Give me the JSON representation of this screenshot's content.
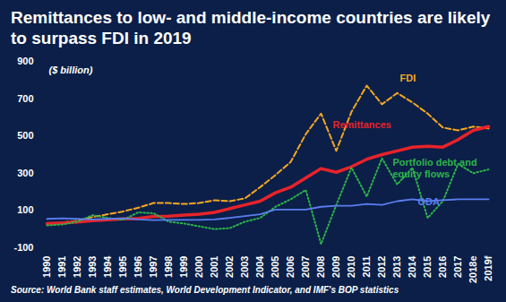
{
  "chart_data": {
    "type": "line",
    "title": "Remittances to low- and middle-income countries are likely to surpass FDI in 2019",
    "subtitle": "($ billion)",
    "source": "Source: World Bank staff estimates, World Development Indicator, and IMF's BOP statistics",
    "categories": [
      "1990",
      "1991",
      "1992",
      "1993",
      "1994",
      "1995",
      "1996",
      "1997",
      "1998",
      "1999",
      "2000",
      "2001",
      "2002",
      "2003",
      "2004",
      "2005",
      "2006",
      "2007",
      "2008",
      "2009",
      "2010",
      "2011",
      "2012",
      "2013",
      "2014",
      "2015",
      "2016",
      "2017",
      "2018e",
      "2019f"
    ],
    "series": [
      {
        "name": "FDI",
        "color": "#f5a623",
        "line_style": "dashed",
        "values": [
          25,
          35,
          45,
          65,
          80,
          95,
          115,
          140,
          140,
          135,
          140,
          155,
          150,
          165,
          225,
          290,
          360,
          510,
          620,
          420,
          630,
          770,
          670,
          730,
          680,
          620,
          545,
          530,
          550,
          540
        ]
      },
      {
        "name": "Remittances",
        "color": "#e8232a",
        "line_style": "solid",
        "values": [
          30,
          33,
          38,
          45,
          50,
          55,
          58,
          68,
          70,
          75,
          80,
          90,
          110,
          130,
          150,
          195,
          225,
          275,
          325,
          305,
          335,
          375,
          400,
          420,
          440,
          445,
          440,
          480,
          530,
          550
        ]
      },
      {
        "name": "Portfolio debt and equity flows",
        "color": "#2db34a",
        "line_style": "dotted",
        "values": [
          20,
          25,
          40,
          75,
          60,
          50,
          90,
          85,
          40,
          30,
          15,
          0,
          5,
          40,
          60,
          120,
          160,
          210,
          -80,
          130,
          330,
          175,
          380,
          240,
          330,
          60,
          150,
          350,
          300,
          320
        ]
      },
      {
        "name": "ODA",
        "color": "#5b7ef0",
        "line_style": "solid",
        "values": [
          55,
          58,
          55,
          52,
          55,
          58,
          52,
          48,
          50,
          50,
          50,
          52,
          60,
          70,
          80,
          105,
          105,
          105,
          120,
          125,
          125,
          135,
          130,
          150,
          160,
          150,
          155,
          160,
          160,
          160
        ]
      }
    ],
    "ylim": [
      -100,
      900
    ],
    "yticks": [
      -100,
      100,
      300,
      500,
      700,
      900
    ],
    "grid": false
  }
}
